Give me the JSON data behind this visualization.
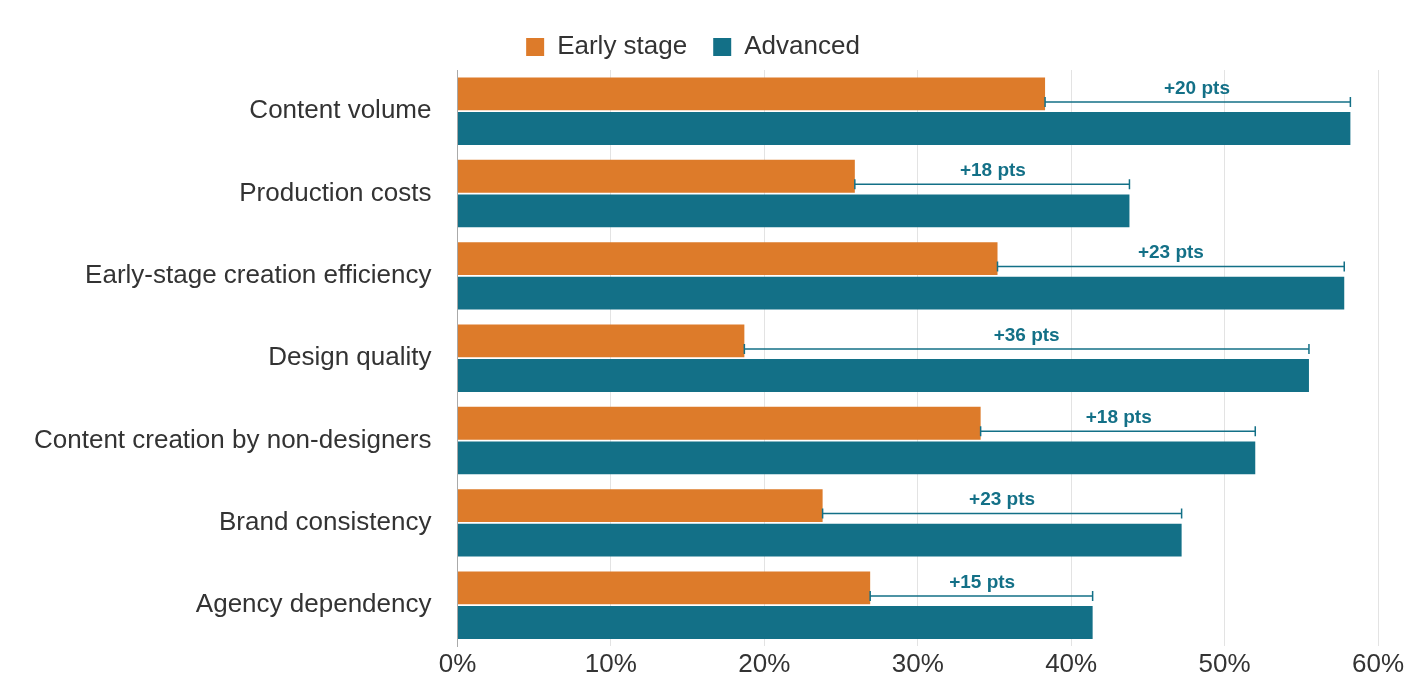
{
  "chart_data": {
    "type": "bar",
    "orientation": "horizontal",
    "categories": [
      "Content volume",
      "Production costs",
      "Early-stage creation efficiency",
      "Design quality",
      "Content creation by non-designers",
      "Brand consistency",
      "Agency dependency"
    ],
    "series": [
      {
        "name": "Early stage",
        "color": "#dd7b2a",
        "values": [
          38.3,
          25.9,
          35.2,
          18.7,
          34.1,
          23.8,
          26.9
        ],
        "errors": [
          [
            38.3,
            58.2
          ],
          [
            25.9,
            43.8
          ],
          [
            35.2,
            57.8
          ],
          [
            18.7,
            55.5
          ],
          [
            34.1,
            52.0
          ],
          [
            23.8,
            47.2
          ],
          [
            26.9,
            41.4
          ]
        ]
      },
      {
        "name": "Advanced",
        "color": "#137087",
        "values": [
          58.2,
          43.8,
          57.8,
          55.5,
          52.0,
          47.2,
          41.4
        ]
      }
    ],
    "xlim": [
      0,
      60
    ],
    "xticks": [
      {
        "value": 0,
        "label": "0%"
      },
      {
        "value": 10,
        "label": "10%"
      },
      {
        "value": 20,
        "label": "20%"
      },
      {
        "value": 30,
        "label": "30%"
      },
      {
        "value": 40,
        "label": "40%"
      },
      {
        "value": 50,
        "label": "50%"
      },
      {
        "value": 60,
        "label": "60%"
      }
    ],
    "grid": "x",
    "legend": "top",
    "annotations": [
      {
        "text": "+20 pts",
        "x": 48.2,
        "y": "Content volume"
      },
      {
        "text": "+18 pts",
        "x": 34.9,
        "y": "Production costs"
      },
      {
        "text": "+23 pts",
        "x": 46.5,
        "y": "Early-stage creation efficiency"
      },
      {
        "text": "+36 pts",
        "x": 37.1,
        "y": "Design quality"
      },
      {
        "text": "+18 pts",
        "x": 43.1,
        "y": "Content creation by non-designers"
      },
      {
        "text": "+23 pts",
        "x": 35.5,
        "y": "Brand consistency"
      },
      {
        "text": "+15 pts",
        "x": 34.2,
        "y": "Agency dependency"
      }
    ]
  }
}
